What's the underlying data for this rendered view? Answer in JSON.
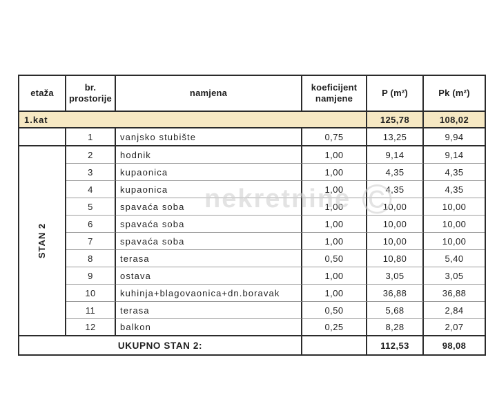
{
  "table": {
    "headers": {
      "etaza": "etaža",
      "br_line1": "br.",
      "br_line2": "prostorije",
      "namjena": "namjena",
      "koef_line1": "koeficijent",
      "koef_line2": "namjene",
      "p": "P (m²)",
      "pk": "Pk (m²)"
    },
    "floor_row": {
      "label": "1.kat",
      "p": "125,78",
      "pk": "108,02"
    },
    "group_label": "STAN 2",
    "rows": [
      {
        "no": "1",
        "name": "vanjsko stubište",
        "koef": "0,75",
        "p": "13,25",
        "pk": "9,94"
      },
      {
        "no": "2",
        "name": "hodnik",
        "koef": "1,00",
        "p": "9,14",
        "pk": "9,14"
      },
      {
        "no": "3",
        "name": "kupaonica",
        "koef": "1,00",
        "p": "4,35",
        "pk": "4,35"
      },
      {
        "no": "4",
        "name": "kupaonica",
        "koef": "1,00",
        "p": "4,35",
        "pk": "4,35"
      },
      {
        "no": "5",
        "name": "spavaća soba",
        "koef": "1,00",
        "p": "10,00",
        "pk": "10,00"
      },
      {
        "no": "6",
        "name": "spavaća soba",
        "koef": "1,00",
        "p": "10,00",
        "pk": "10,00"
      },
      {
        "no": "7",
        "name": "spavaća soba",
        "koef": "1,00",
        "p": "10,00",
        "pk": "10,00"
      },
      {
        "no": "8",
        "name": "terasa",
        "koef": "0,50",
        "p": "10,80",
        "pk": "5,40"
      },
      {
        "no": "9",
        "name": "ostava",
        "koef": "1,00",
        "p": "3,05",
        "pk": "3,05"
      },
      {
        "no": "10",
        "name": "kuhinja+blagovaonica+dn.boravak",
        "koef": "1,00",
        "p": "36,88",
        "pk": "36,88"
      },
      {
        "no": "11",
        "name": "terasa",
        "koef": "0,50",
        "p": "5,68",
        "pk": "2,84"
      },
      {
        "no": "12",
        "name": "balkon",
        "koef": "0,25",
        "p": "8,28",
        "pk": "2,07"
      }
    ],
    "total_row": {
      "label": "UKUPNO STAN 2:",
      "p": "112,53",
      "pk": "98,08"
    }
  },
  "watermark": {
    "text": "nekretnine",
    "symbol": "©"
  },
  "colors": {
    "floor_row_bg": "#f6e8c3",
    "border_dark": "#2b2b2b",
    "border_light": "#9b9b9b"
  }
}
